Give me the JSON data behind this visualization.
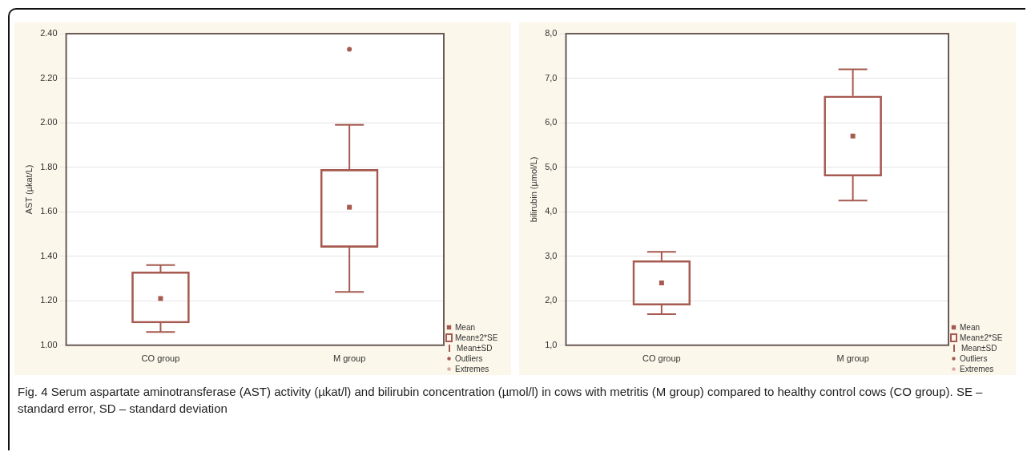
{
  "chart_data": [
    {
      "type": "box",
      "ylabel": "AST (µkat/L)",
      "categories": [
        "CO group",
        "M group"
      ],
      "color": "#a65a50",
      "boxes": [
        {
          "low": 1.06,
          "q1": 1.1,
          "median": 1.21,
          "q3": 1.33,
          "high": 1.36
        },
        {
          "low": 1.24,
          "q1": 1.44,
          "median": 1.62,
          "q3": 1.79,
          "high": 1.99,
          "outliers": [
            2.33
          ]
        }
      ],
      "ylim": [
        1.0,
        2.4
      ],
      "yticks": [
        {
          "value": 1.0,
          "label": "1.00"
        },
        {
          "value": 1.2,
          "label": "1.20"
        },
        {
          "value": 1.4,
          "label": "1.40"
        },
        {
          "value": 1.6,
          "label": "1.60"
        },
        {
          "value": 1.8,
          "label": "1.80"
        },
        {
          "value": 2.0,
          "label": "2.00"
        },
        {
          "value": 2.2,
          "label": "2.20"
        },
        {
          "value": 2.4,
          "label": "2.40"
        }
      ],
      "grid": "y",
      "annotations": [
        "Mean",
        "Mean±2*SE",
        "Mean±SD",
        "Outliers",
        "Extremes"
      ]
    },
    {
      "type": "box",
      "ylabel": "bilirubin (µmol/L)",
      "categories": [
        "CO group",
        "M group"
      ],
      "color": "#a65a50",
      "boxes": [
        {
          "low": 1.7,
          "q1": 1.9,
          "median": 2.4,
          "q3": 2.9,
          "high": 3.1
        },
        {
          "low": 4.25,
          "q1": 4.8,
          "median": 5.7,
          "q3": 6.6,
          "high": 7.2
        }
      ],
      "ylim": [
        1.0,
        8.0
      ],
      "yticks": [
        {
          "value": 1,
          "label": "1,0"
        },
        {
          "value": 2,
          "label": "2,0"
        },
        {
          "value": 3,
          "label": "3,0"
        },
        {
          "value": 4,
          "label": "4,0"
        },
        {
          "value": 5,
          "label": "5,0"
        },
        {
          "value": 6,
          "label": "6,0"
        },
        {
          "value": 7,
          "label": "7,0"
        },
        {
          "value": 8,
          "label": "8,0"
        }
      ],
      "grid": "y",
      "annotations": [
        "Mean",
        "Mean±2*SE",
        "Mean±SD",
        "Outliers",
        "Extremes",
        "Fig. 4 Serum aspartate aminotransferase (AST) activity (µkat/l) and bilirubin concentration (µmol/l) in cows with metritis (M group) compared to healthy control cows (CO group). SE – standard error, SD – standard deviation"
      ]
    }
  ]
}
